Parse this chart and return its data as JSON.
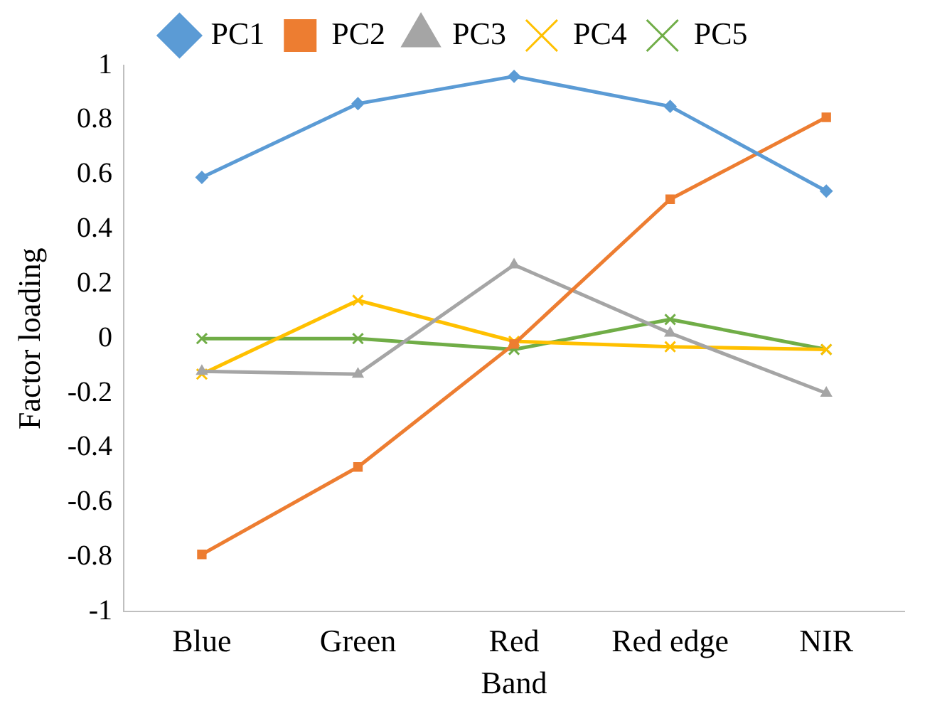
{
  "chart_data": {
    "type": "line",
    "xlabel": "Band",
    "ylabel": "Factor loading",
    "categories": [
      "Blue",
      "Green",
      "Red",
      "Red edge",
      "NIR"
    ],
    "series": [
      {
        "name": "PC1",
        "color": "#5b9bd5",
        "marker": "diamond",
        "values": [
          0.59,
          0.86,
          0.96,
          0.85,
          0.54
        ]
      },
      {
        "name": "PC2",
        "color": "#ed7d31",
        "marker": "square",
        "values": [
          -0.79,
          -0.47,
          -0.02,
          0.51,
          0.81
        ]
      },
      {
        "name": "PC3",
        "color": "#a5a5a5",
        "marker": "triangle",
        "values": [
          -0.12,
          -0.13,
          0.27,
          0.02,
          -0.2
        ]
      },
      {
        "name": "PC4",
        "color": "#ffc000",
        "marker": "cross",
        "values": [
          -0.13,
          0.14,
          -0.01,
          -0.03,
          -0.04
        ]
      },
      {
        "name": "PC5",
        "color": "#70ad47",
        "marker": "cross",
        "values": [
          0.0,
          0.0,
          -0.04,
          0.07,
          -0.04
        ]
      }
    ],
    "ylim": [
      -1,
      1
    ],
    "yticks": [
      -1,
      -0.8,
      -0.6,
      -0.4,
      -0.2,
      0,
      0.2,
      0.4,
      0.6,
      0.8,
      1
    ],
    "grid": false,
    "legend": "top",
    "line_style": "solid"
  }
}
